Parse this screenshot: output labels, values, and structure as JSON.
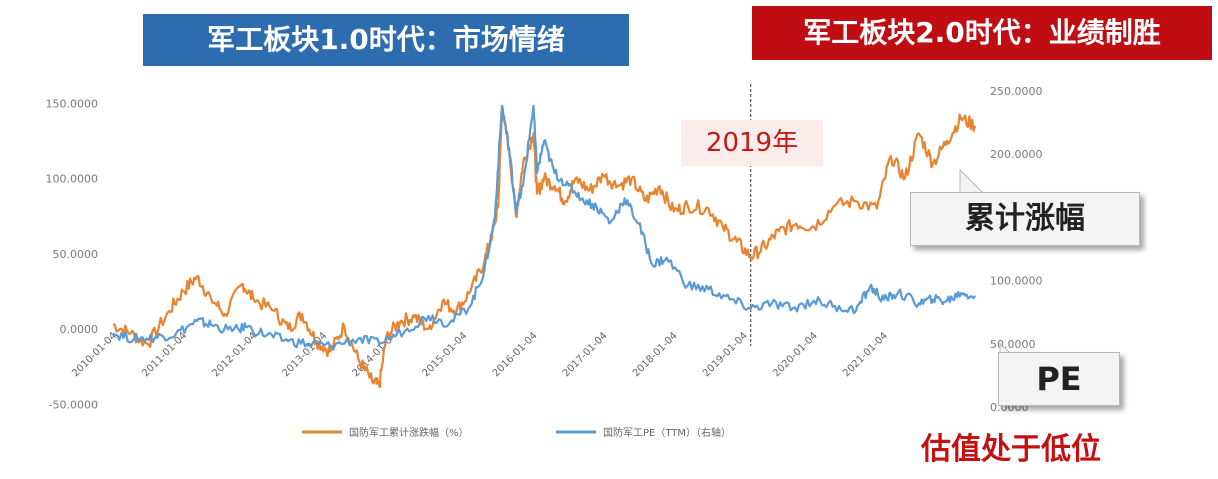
{
  "banners": {
    "left": "军工板块1.0时代：市场情绪",
    "right": "军工板块2.0时代：业绩制胜"
  },
  "annotations": {
    "year_marker": "2019年",
    "cumulative_callout": "累计涨幅",
    "pe_callout": "PE",
    "valuation_note": "估值处于低位"
  },
  "colors": {
    "cumulative": "#e88430",
    "pe": "#5b9bd5",
    "banner_left": "#2e6cb0",
    "banner_right": "#bf0d13"
  },
  "chart_data": {
    "type": "line",
    "x_ticks": [
      "2010-01-04",
      "2011-01-04",
      "2012-01-04",
      "2013-01-04",
      "2014-01-04",
      "2015-01-04",
      "2016-01-04",
      "2017-01-04",
      "2018-01-04",
      "2019-01-04",
      "2020-01-04",
      "2021-01-04"
    ],
    "y_left": {
      "ticks": [
        "150.0000",
        "100.0000",
        "50.0000",
        "0.0000",
        "-50.0000"
      ],
      "range": [
        -50,
        150
      ]
    },
    "y_right": {
      "ticks": [
        "250.0000",
        "200.0000",
        "100.0000",
        "50.0000",
        "0.0000"
      ],
      "range": [
        0,
        250
      ]
    },
    "series": [
      {
        "name": "国防军工累计涨跌幅（%）",
        "axis": "left",
        "points": [
          [
            2010.0,
            3
          ],
          [
            2010.25,
            -3
          ],
          [
            2010.5,
            -10
          ],
          [
            2010.8,
            12
          ],
          [
            2011.0,
            25
          ],
          [
            2011.2,
            35
          ],
          [
            2011.4,
            20
          ],
          [
            2011.6,
            10
          ],
          [
            2011.85,
            30
          ],
          [
            2012.0,
            20
          ],
          [
            2012.3,
            12
          ],
          [
            2012.5,
            0
          ],
          [
            2012.7,
            10
          ],
          [
            2012.9,
            -8
          ],
          [
            2013.1,
            -15
          ],
          [
            2013.3,
            2
          ],
          [
            2013.5,
            -20
          ],
          [
            2013.7,
            -35
          ],
          [
            2013.8,
            -38
          ],
          [
            2013.9,
            -5
          ],
          [
            2014.1,
            5
          ],
          [
            2014.3,
            8
          ],
          [
            2014.5,
            0
          ],
          [
            2014.7,
            18
          ],
          [
            2014.9,
            12
          ],
          [
            2015.1,
            25
          ],
          [
            2015.3,
            45
          ],
          [
            2015.45,
            70
          ],
          [
            2015.5,
            85
          ],
          [
            2015.55,
            145
          ],
          [
            2015.65,
            120
          ],
          [
            2015.75,
            75
          ],
          [
            2015.85,
            110
          ],
          [
            2016.0,
            130
          ],
          [
            2016.05,
            90
          ],
          [
            2016.15,
            100
          ],
          [
            2016.3,
            95
          ],
          [
            2016.45,
            85
          ],
          [
            2016.6,
            100
          ],
          [
            2016.8,
            92
          ],
          [
            2017.0,
            102
          ],
          [
            2017.2,
            95
          ],
          [
            2017.4,
            100
          ],
          [
            2017.6,
            85
          ],
          [
            2017.8,
            95
          ],
          [
            2018.0,
            78
          ],
          [
            2018.2,
            82
          ],
          [
            2018.5,
            80
          ],
          [
            2018.7,
            68
          ],
          [
            2018.9,
            58
          ],
          [
            2019.1,
            48
          ],
          [
            2019.3,
            55
          ],
          [
            2019.5,
            65
          ],
          [
            2019.75,
            70
          ],
          [
            2020.0,
            68
          ],
          [
            2020.3,
            82
          ],
          [
            2020.6,
            85
          ],
          [
            2020.9,
            80
          ],
          [
            2021.1,
            115
          ],
          [
            2021.3,
            100
          ],
          [
            2021.5,
            130
          ],
          [
            2021.7,
            110
          ],
          [
            2021.9,
            125
          ],
          [
            2022.1,
            140
          ],
          [
            2022.3,
            135
          ]
        ]
      },
      {
        "name": "国防军工PE（TTM）（右轴）",
        "axis": "right",
        "points": [
          [
            2010.0,
            58
          ],
          [
            2010.3,
            54
          ],
          [
            2010.6,
            55
          ],
          [
            2010.9,
            58
          ],
          [
            2011.2,
            68
          ],
          [
            2011.4,
            65
          ],
          [
            2011.7,
            60
          ],
          [
            2011.9,
            63
          ],
          [
            2012.2,
            57
          ],
          [
            2012.5,
            52
          ],
          [
            2012.8,
            50
          ],
          [
            2013.1,
            48
          ],
          [
            2013.5,
            54
          ],
          [
            2013.8,
            50
          ],
          [
            2014.2,
            62
          ],
          [
            2014.5,
            72
          ],
          [
            2014.8,
            66
          ],
          [
            2015.1,
            80
          ],
          [
            2015.3,
            108
          ],
          [
            2015.45,
            150
          ],
          [
            2015.55,
            238
          ],
          [
            2015.65,
            205
          ],
          [
            2015.75,
            155
          ],
          [
            2015.85,
            175
          ],
          [
            2016.0,
            238
          ],
          [
            2016.05,
            185
          ],
          [
            2016.15,
            210
          ],
          [
            2016.3,
            185
          ],
          [
            2016.5,
            175
          ],
          [
            2016.7,
            165
          ],
          [
            2016.9,
            158
          ],
          [
            2017.1,
            146
          ],
          [
            2017.3,
            165
          ],
          [
            2017.5,
            145
          ],
          [
            2017.7,
            112
          ],
          [
            2017.9,
            118
          ],
          [
            2018.2,
            96
          ],
          [
            2018.5,
            93
          ],
          [
            2018.8,
            85
          ],
          [
            2019.1,
            78
          ],
          [
            2019.4,
            82
          ],
          [
            2019.7,
            78
          ],
          [
            2020.0,
            84
          ],
          [
            2020.3,
            80
          ],
          [
            2020.6,
            76
          ],
          [
            2020.8,
            95
          ],
          [
            2021.0,
            85
          ],
          [
            2021.2,
            90
          ],
          [
            2021.5,
            82
          ],
          [
            2021.7,
            85
          ],
          [
            2021.9,
            84
          ],
          [
            2022.1,
            90
          ],
          [
            2022.3,
            88
          ]
        ]
      }
    ],
    "vertical_marker_x": 2019.1,
    "grid": false,
    "legend_position": "bottom"
  }
}
